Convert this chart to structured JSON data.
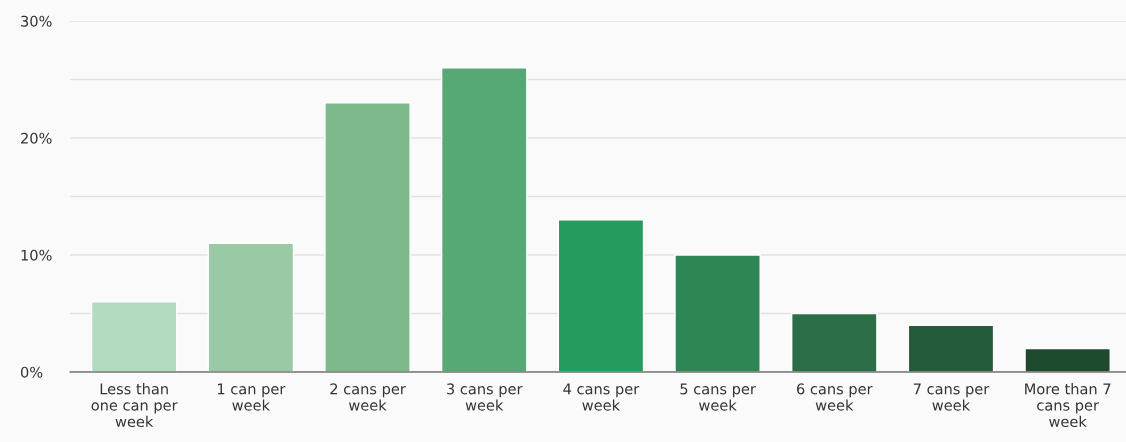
{
  "chart_data": {
    "type": "bar",
    "categories": [
      "Less than one can per week",
      "1 can per week",
      "2 cans per week",
      "3 cans per week",
      "4 cans per week",
      "5 cans per week",
      "6 cans per week",
      "7 cans per week",
      "More than 7 cans per week"
    ],
    "values": [
      6,
      11,
      23,
      26,
      13,
      10,
      5,
      4,
      2
    ],
    "colors": [
      "#b3dbc0",
      "#9ac9a5",
      "#7db98b",
      "#56a874",
      "#279a5e",
      "#2e8655",
      "#2a6d46",
      "#245b3a",
      "#1e4a2e"
    ],
    "ylim": [
      0,
      30
    ],
    "yticks": [
      {
        "value": 0,
        "label": "0%"
      },
      {
        "value": 5,
        "label": null
      },
      {
        "value": 10,
        "label": "10%"
      },
      {
        "value": 15,
        "label": null
      },
      {
        "value": 20,
        "label": "20%"
      },
      {
        "value": 25,
        "label": null
      },
      {
        "value": 30,
        "label": "30%"
      }
    ],
    "grid": "y",
    "legend": false
  }
}
